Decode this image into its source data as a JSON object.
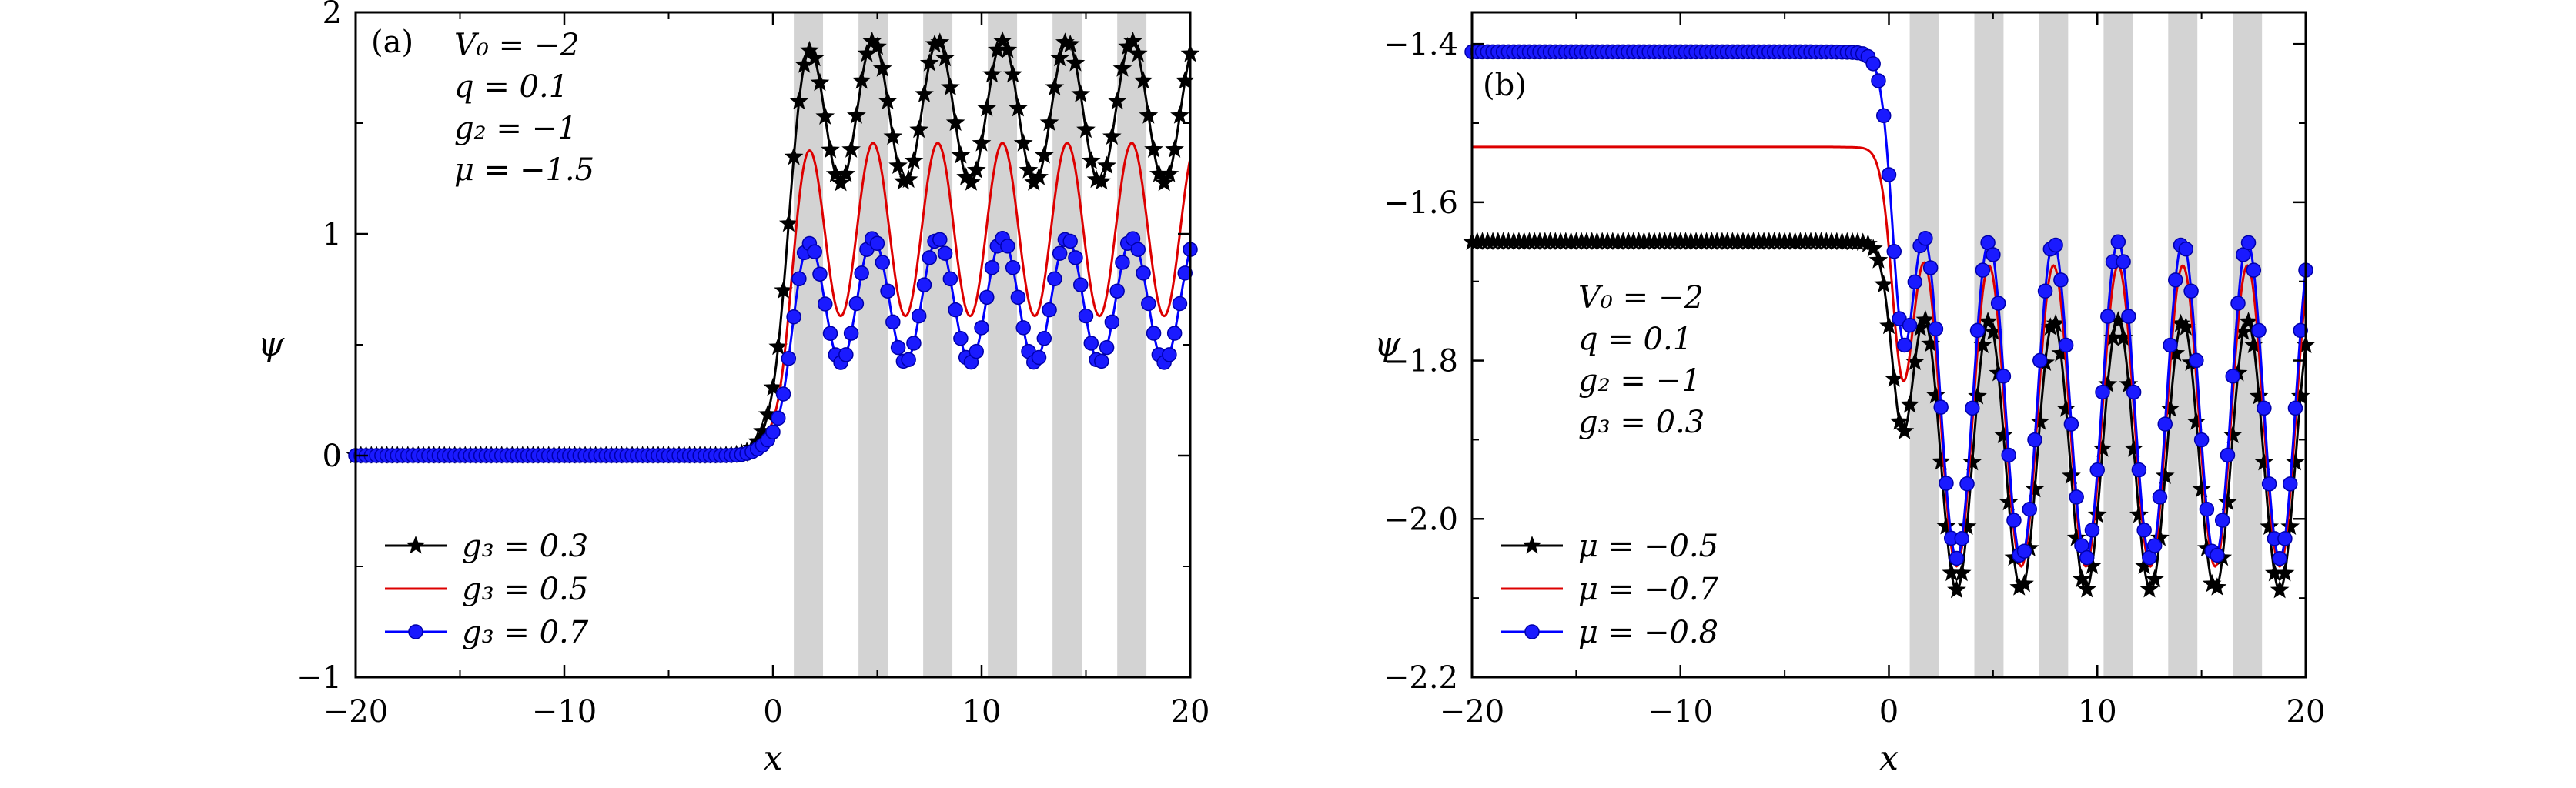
{
  "chart_data": [
    {
      "type": "line",
      "panel_label": "(a)",
      "xlabel": "x",
      "ylabel": "ψ",
      "xlim": [
        -20,
        20
      ],
      "ylim": [
        -1,
        2
      ],
      "xticks": [
        -20,
        -10,
        0,
        10,
        20
      ],
      "xtick_labels": [
        "−20",
        "−10",
        "0",
        "10",
        "20"
      ],
      "yticks": [
        -1,
        0,
        1,
        2
      ],
      "ytick_labels": [
        "−1",
        "0",
        "1",
        "2"
      ],
      "annotations": [
        "V₀ = −2",
        "q = 0.1",
        "g₂ = −1",
        "μ = −1.5"
      ],
      "shaded_bands": [
        [
          1,
          2.4
        ],
        [
          4.1,
          5.5
        ],
        [
          7.2,
          8.6
        ],
        [
          10.3,
          11.7
        ],
        [
          13.4,
          14.8
        ],
        [
          16.5,
          17.9
        ]
      ],
      "legend_position": "bottom-left",
      "series": [
        {
          "name": "g₃ = 0.3",
          "color": "#000000",
          "marker": "star",
          "plateau": 1.55,
          "amplitude": 0.32,
          "low": 0.0
        },
        {
          "name": "g₃ = 0.5",
          "color": "#dd0000",
          "marker": "none",
          "plateau": 1.02,
          "amplitude": 0.39,
          "low": 0.0
        },
        {
          "name": "g₃ = 0.7",
          "color": "#0000ff",
          "marker": "circle",
          "plateau": 0.7,
          "amplitude": 0.28,
          "low": 0.0
        }
      ]
    },
    {
      "type": "line",
      "panel_label": "(b)",
      "xlabel": "x",
      "ylabel": "ψ",
      "xlim": [
        -20,
        20
      ],
      "ylim": [
        -2.2,
        -1.36
      ],
      "xticks": [
        -20,
        -10,
        0,
        10,
        20
      ],
      "xtick_labels": [
        "−20",
        "−10",
        "0",
        "10",
        "20"
      ],
      "yticks": [
        -2.2,
        -2.0,
        -1.8,
        -1.6,
        -1.4
      ],
      "ytick_labels": [
        "−2.2",
        "−2.0",
        "−1.8",
        "−1.6",
        "−1.4"
      ],
      "annotations": [
        "V₀ = −2",
        "q = 0.1",
        "g₂ = −1",
        "g₃ = 0.3"
      ],
      "shaded_bands": [
        [
          1,
          2.4
        ],
        [
          4.1,
          5.5
        ],
        [
          7.2,
          8.6
        ],
        [
          10.3,
          11.7
        ],
        [
          13.4,
          14.8
        ],
        [
          16.5,
          17.9
        ]
      ],
      "legend_position": "bottom-left",
      "series": [
        {
          "name": "μ = −0.5",
          "color": "#000000",
          "marker": "star",
          "plateau": -1.92,
          "amplitude": 0.17,
          "low": -1.65
        },
        {
          "name": "μ = −0.7",
          "color": "#dd0000",
          "marker": "none",
          "plateau": -1.87,
          "amplitude": 0.19,
          "low": -1.53
        },
        {
          "name": "μ = −0.8",
          "color": "#0000ff",
          "marker": "circle",
          "plateau": -1.85,
          "amplitude": 0.2,
          "low": -1.41
        }
      ]
    }
  ]
}
